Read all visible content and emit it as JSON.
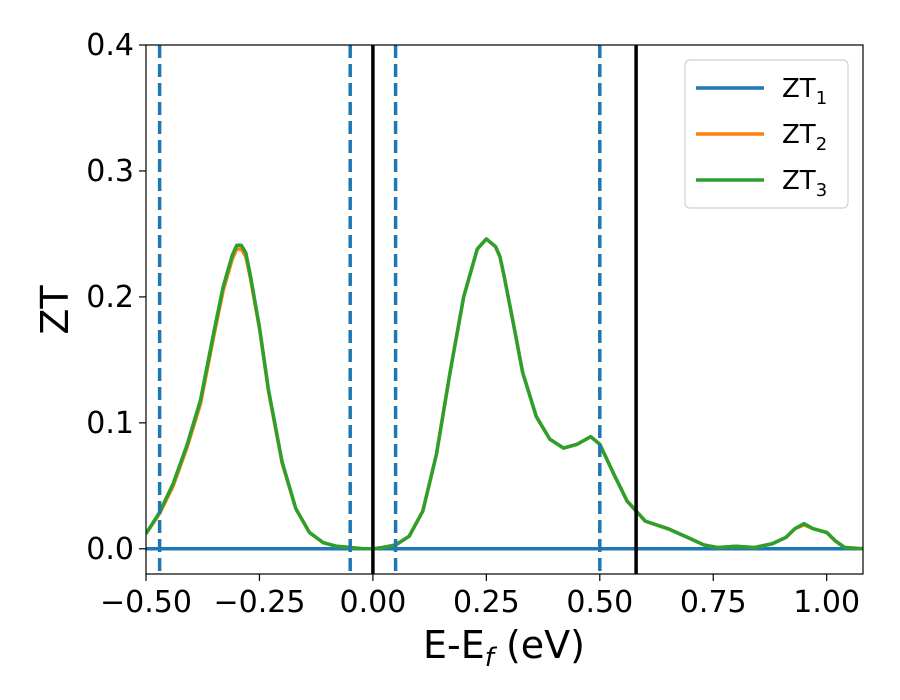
{
  "chart_data": {
    "type": "line",
    "xlabel": "E-E",
    "xlabel_sub": "f",
    "xlabel_unit": " (eV)",
    "ylabel": "ZT",
    "xlim": [
      -0.5,
      1.08
    ],
    "ylim": [
      -0.02,
      0.4
    ],
    "xticks": [
      -0.5,
      -0.25,
      0.0,
      0.25,
      0.5,
      0.75,
      1.0
    ],
    "xtick_labels": [
      "−0.50",
      "−0.25",
      "0.00",
      "0.25",
      "0.50",
      "0.75",
      "1.00"
    ],
    "yticks": [
      0.0,
      0.1,
      0.2,
      0.3,
      0.4
    ],
    "ytick_labels": [
      "0.0",
      "0.1",
      "0.2",
      "0.3",
      "0.4"
    ],
    "grid": false,
    "legend_position": "top-right",
    "vlines_dashed": {
      "color": "#1f77b4",
      "x": [
        -0.47,
        -0.05,
        0.05,
        0.5
      ]
    },
    "vlines_solid": {
      "color": "#000000",
      "x": [
        0.0,
        0.58
      ]
    },
    "series": [
      {
        "name": "ZT",
        "sub": "1",
        "color": "#1f77b4",
        "x": [
          -0.5,
          1.08
        ],
        "y": [
          0.0,
          0.0
        ]
      },
      {
        "name": "ZT",
        "sub": "2",
        "color": "#ff7f0e",
        "x": [
          -0.5,
          -0.47,
          -0.44,
          -0.41,
          -0.38,
          -0.35,
          -0.33,
          -0.31,
          -0.3,
          -0.29,
          -0.28,
          -0.27,
          -0.25,
          -0.23,
          -0.2,
          -0.17,
          -0.14,
          -0.11,
          -0.08,
          -0.05,
          -0.02,
          0.0,
          0.02,
          0.05,
          0.08,
          0.11,
          0.14,
          0.17,
          0.2,
          0.23,
          0.25,
          0.27,
          0.28,
          0.29,
          0.31,
          0.33,
          0.36,
          0.39,
          0.42,
          0.45,
          0.48,
          0.5,
          0.53,
          0.56,
          0.6,
          0.65,
          0.7,
          0.73,
          0.76,
          0.8,
          0.84,
          0.88,
          0.91,
          0.93,
          0.95,
          0.97,
          1.0,
          1.02,
          1.04,
          1.08
        ],
        "y": [
          0.012,
          0.028,
          0.05,
          0.08,
          0.115,
          0.17,
          0.205,
          0.23,
          0.238,
          0.238,
          0.232,
          0.215,
          0.175,
          0.125,
          0.068,
          0.032,
          0.013,
          0.005,
          0.002,
          0.001,
          0.0,
          0.0,
          0.001,
          0.003,
          0.01,
          0.03,
          0.075,
          0.14,
          0.2,
          0.238,
          0.246,
          0.24,
          0.232,
          0.215,
          0.178,
          0.14,
          0.105,
          0.087,
          0.08,
          0.083,
          0.089,
          0.083,
          0.06,
          0.038,
          0.022,
          0.016,
          0.008,
          0.003,
          0.001,
          0.002,
          0.001,
          0.004,
          0.009,
          0.016,
          0.019,
          0.016,
          0.013,
          0.006,
          0.001,
          0.0
        ]
      },
      {
        "name": "ZT",
        "sub": "3",
        "color": "#2ca02c",
        "x": [
          -0.5,
          -0.47,
          -0.44,
          -0.41,
          -0.38,
          -0.35,
          -0.33,
          -0.31,
          -0.3,
          -0.29,
          -0.28,
          -0.27,
          -0.25,
          -0.23,
          -0.2,
          -0.17,
          -0.14,
          -0.11,
          -0.08,
          -0.05,
          -0.02,
          0.0,
          0.02,
          0.05,
          0.08,
          0.11,
          0.14,
          0.17,
          0.2,
          0.23,
          0.25,
          0.27,
          0.28,
          0.29,
          0.31,
          0.33,
          0.36,
          0.39,
          0.42,
          0.45,
          0.48,
          0.5,
          0.53,
          0.56,
          0.6,
          0.65,
          0.7,
          0.73,
          0.76,
          0.8,
          0.84,
          0.88,
          0.91,
          0.93,
          0.95,
          0.97,
          1.0,
          1.02,
          1.04,
          1.08
        ],
        "y": [
          0.012,
          0.029,
          0.052,
          0.082,
          0.118,
          0.173,
          0.208,
          0.233,
          0.241,
          0.241,
          0.235,
          0.217,
          0.176,
          0.126,
          0.069,
          0.032,
          0.013,
          0.005,
          0.002,
          0.001,
          0.0,
          0.0,
          0.001,
          0.003,
          0.01,
          0.03,
          0.075,
          0.14,
          0.2,
          0.238,
          0.246,
          0.24,
          0.232,
          0.215,
          0.178,
          0.14,
          0.105,
          0.087,
          0.08,
          0.083,
          0.089,
          0.083,
          0.06,
          0.038,
          0.022,
          0.016,
          0.008,
          0.003,
          0.001,
          0.002,
          0.001,
          0.004,
          0.009,
          0.016,
          0.02,
          0.016,
          0.013,
          0.006,
          0.001,
          0.0
        ]
      }
    ]
  }
}
